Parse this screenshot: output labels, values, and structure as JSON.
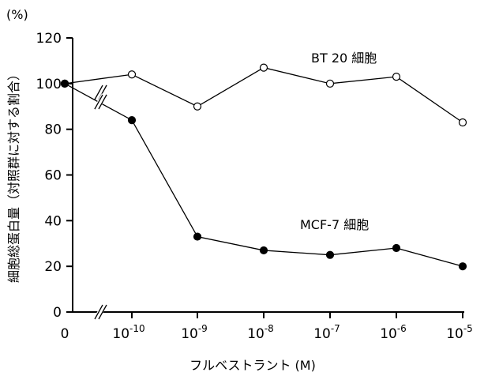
{
  "chart_data": {
    "type": "line",
    "unit_label": "(%)",
    "ylabel": "細胞総蛋白量（対照群に対する割合）",
    "xlabel": "フルベストラント (M)",
    "ylim": [
      0,
      120
    ],
    "yticks": [
      "0",
      "20",
      "40",
      "60",
      "80",
      "100",
      "120"
    ],
    "x_categories": [
      {
        "base": "0",
        "exp": ""
      },
      {
        "base": "10",
        "exp": "-10"
      },
      {
        "base": "10",
        "exp": "-9"
      },
      {
        "base": "10",
        "exp": "-8"
      },
      {
        "base": "10",
        "exp": "-7"
      },
      {
        "base": "10",
        "exp": "-6"
      },
      {
        "base": "10",
        "exp": "-5"
      }
    ],
    "axis_break": "between 0 and 10^-10",
    "series": [
      {
        "name": "BT 20 細胞",
        "marker": "open-circle",
        "values": [
          100,
          104,
          90,
          107,
          100,
          103,
          83
        ]
      },
      {
        "name": "MCF-7 細胞",
        "marker": "filled-circle",
        "values": [
          100,
          84,
          33,
          27,
          25,
          28,
          20
        ]
      }
    ]
  }
}
